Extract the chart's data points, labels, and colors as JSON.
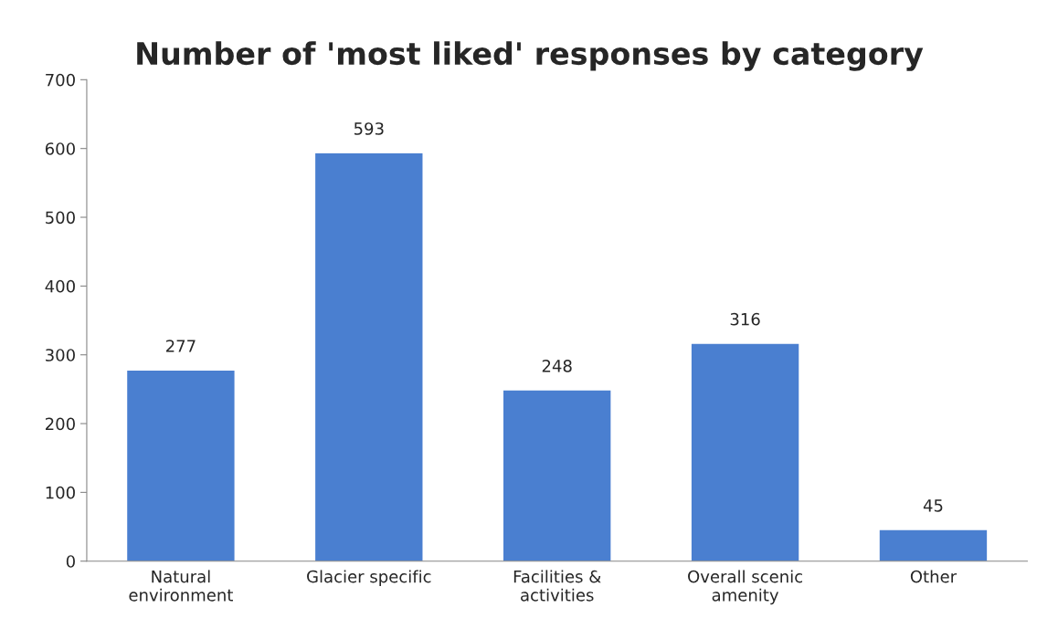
{
  "chart_data": {
    "type": "bar",
    "title": "Number of 'most liked' responses by category",
    "categories": [
      "Natural\nenvironment",
      "Glacier specific",
      "Facilities &\nactivities",
      "Overall scenic\namenity",
      "Other"
    ],
    "values": [
      277,
      593,
      248,
      316,
      45
    ],
    "color": "#4a7fd0",
    "ylim": [
      0,
      700
    ],
    "yticks": [
      0,
      100,
      200,
      300,
      400,
      500,
      600,
      700
    ],
    "grid": false,
    "data_labels": true
  }
}
